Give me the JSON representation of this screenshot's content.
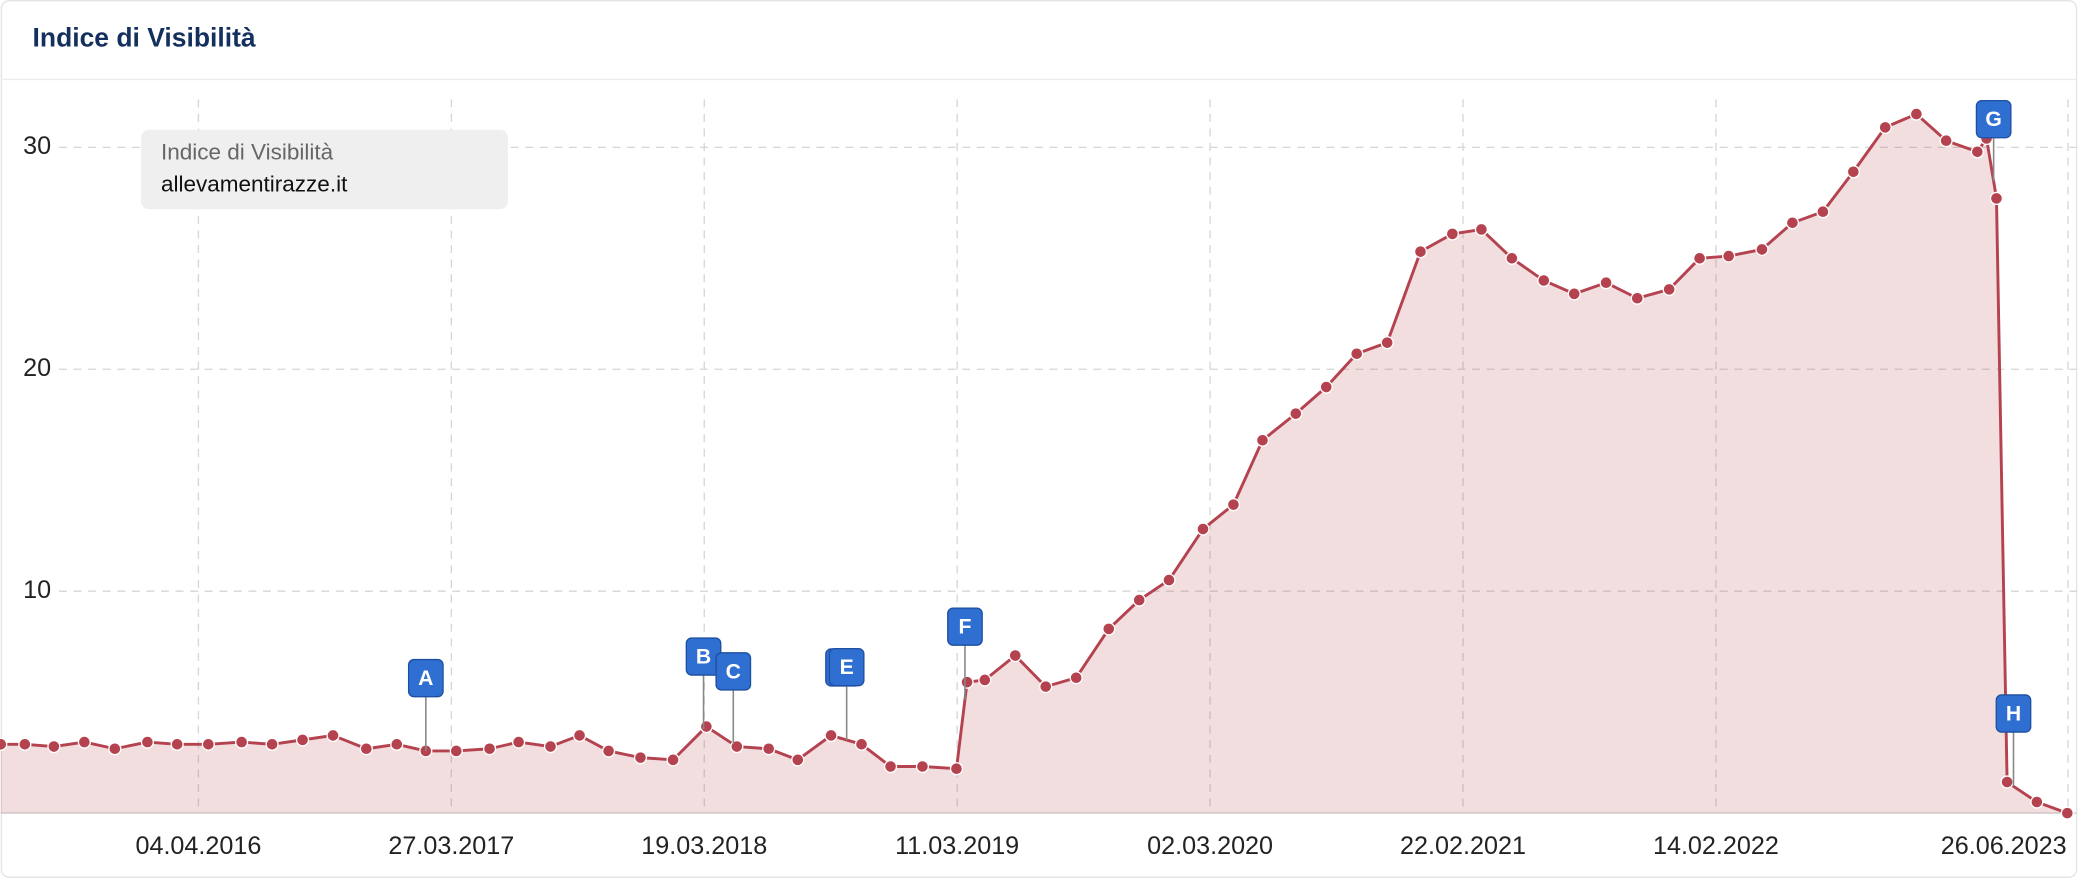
{
  "chart_data": {
    "type": "area",
    "title": "Indice di Visibilità",
    "legend_title": "Indice di Visibilità",
    "legend": "top-left",
    "grid": true,
    "xlim": [
      "30.06.2015",
      "09.07.2023"
    ],
    "xticks": [
      "04.04.2016",
      "27.03.2017",
      "19.03.2018",
      "11.03.2019",
      "02.03.2020",
      "22.02.2021",
      "14.02.2022",
      "26.06.2023"
    ],
    "ylim": [
      0,
      33
    ],
    "yticks": [
      10,
      20,
      30
    ],
    "x": [
      "30.06.2015",
      "03.08.2015",
      "13.09.2015",
      "26.10.2015",
      "08.12.2015",
      "23.01.2016",
      "05.03.2016",
      "18.04.2016",
      "04.06.2016",
      "17.07.2016",
      "29.08.2016",
      "11.10.2016",
      "27.11.2016",
      "09.01.2017",
      "19.02.2017",
      "03.04.2017",
      "20.05.2017",
      "30.06.2017",
      "14.08.2017",
      "24.09.2017",
      "04.11.2017",
      "19.12.2017",
      "03.02.2018",
      "22.03.2018",
      "04.05.2018",
      "18.06.2018",
      "29.07.2018",
      "14.09.2018",
      "27.10.2018",
      "07.12.2018",
      "21.01.2019",
      "10.03.2019",
      "25.03.2019",
      "19.04.2019",
      "01.06.2019",
      "14.07.2019",
      "26.08.2019",
      "11.10.2019",
      "23.11.2019",
      "04.01.2020",
      "21.02.2020",
      "04.04.2020",
      "15.05.2020",
      "01.07.2020",
      "13.08.2020",
      "25.09.2020",
      "07.11.2020",
      "24.12.2020",
      "07.02.2021",
      "20.03.2021",
      "02.05.2021",
      "16.06.2021",
      "29.07.2021",
      "12.09.2021",
      "26.10.2021",
      "10.12.2021",
      "22.01.2022",
      "04.03.2022",
      "20.04.2022",
      "02.06.2022",
      "15.07.2022",
      "27.08.2022",
      "11.10.2022",
      "24.11.2022",
      "05.01.2023",
      "18.02.2023",
      "03.03.2023",
      "17.03.2023",
      "01.04.2023",
      "13.05.2023",
      "25.06.2023"
    ],
    "series": [
      {
        "name": "allevamentirazze.it",
        "color": "#b5424f",
        "values": [
          3.1,
          3.1,
          3.0,
          3.2,
          2.9,
          3.2,
          3.1,
          3.1,
          3.2,
          3.1,
          3.3,
          3.5,
          2.9,
          3.1,
          2.8,
          2.8,
          2.9,
          3.2,
          3.0,
          3.5,
          2.8,
          2.5,
          2.4,
          3.9,
          3.0,
          2.9,
          2.4,
          3.5,
          3.1,
          2.1,
          2.1,
          2.0,
          5.9,
          6.0,
          7.1,
          5.7,
          6.1,
          8.3,
          9.6,
          10.5,
          12.8,
          13.9,
          16.8,
          18.0,
          19.2,
          20.7,
          21.2,
          25.3,
          26.1,
          26.3,
          25.0,
          24.0,
          23.4,
          23.9,
          23.2,
          23.6,
          25.0,
          25.1,
          25.4,
          26.6,
          27.1,
          28.9,
          30.9,
          31.5,
          30.3,
          29.8,
          30.4,
          27.7,
          1.4,
          0.5,
          0.0
        ]
      }
    ],
    "events": [
      {
        "label": "A",
        "date": "19.02.2017"
      },
      {
        "label": "B",
        "date": "18.03.2018"
      },
      {
        "label": "C",
        "date": "29.04.2018"
      },
      {
        "label": "E",
        "date": "06.10.2018"
      },
      {
        "label": "F",
        "date": "22.03.2019"
      },
      {
        "label": "G",
        "date": "13.03.2023"
      },
      {
        "label": "H",
        "date": "10.04.2023"
      }
    ]
  }
}
